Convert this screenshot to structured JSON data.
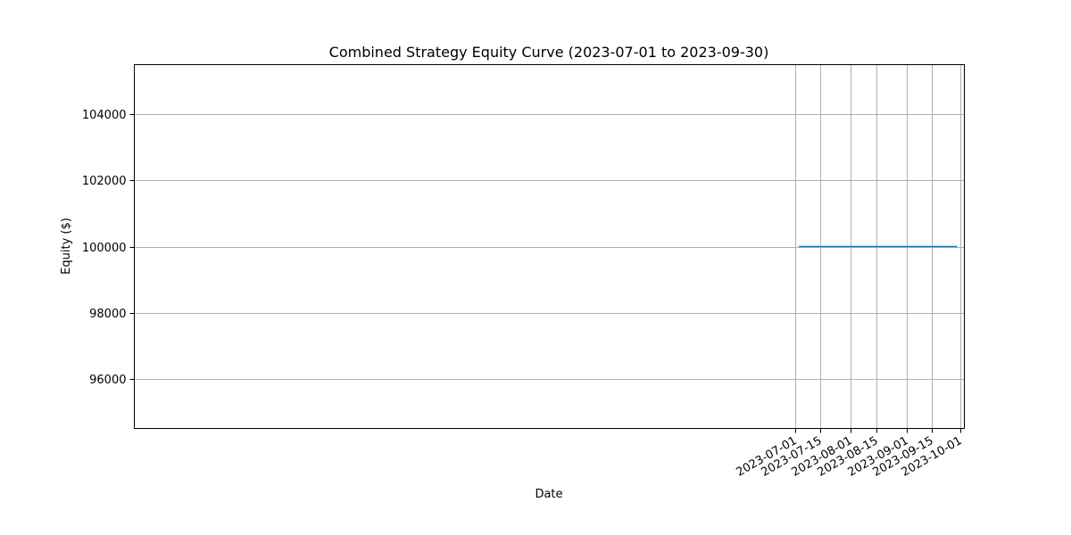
{
  "chart_data": {
    "type": "line",
    "title": "Combined Strategy Equity Curve (2023-07-01 to 2023-09-30)",
    "xlabel": "Date",
    "ylabel": "Equity ($)",
    "x_type": "date",
    "xlim": [
      "2022-06-29",
      "2023-10-03"
    ],
    "ylim": [
      94500,
      105500
    ],
    "x_ticks": [
      "2023-07-01",
      "2023-07-15",
      "2023-08-01",
      "2023-08-15",
      "2023-09-01",
      "2023-09-15",
      "2023-10-01"
    ],
    "y_ticks": [
      96000,
      98000,
      100000,
      102000,
      104000
    ],
    "y_tick_labels": [
      "96000",
      "98000",
      "100000",
      "102000",
      "104000"
    ],
    "grid": true,
    "series": [
      {
        "color": "#1f77b4",
        "x": [
          "2023-07-03",
          "2023-09-29"
        ],
        "y": [
          100000,
          100000
        ]
      }
    ]
  }
}
